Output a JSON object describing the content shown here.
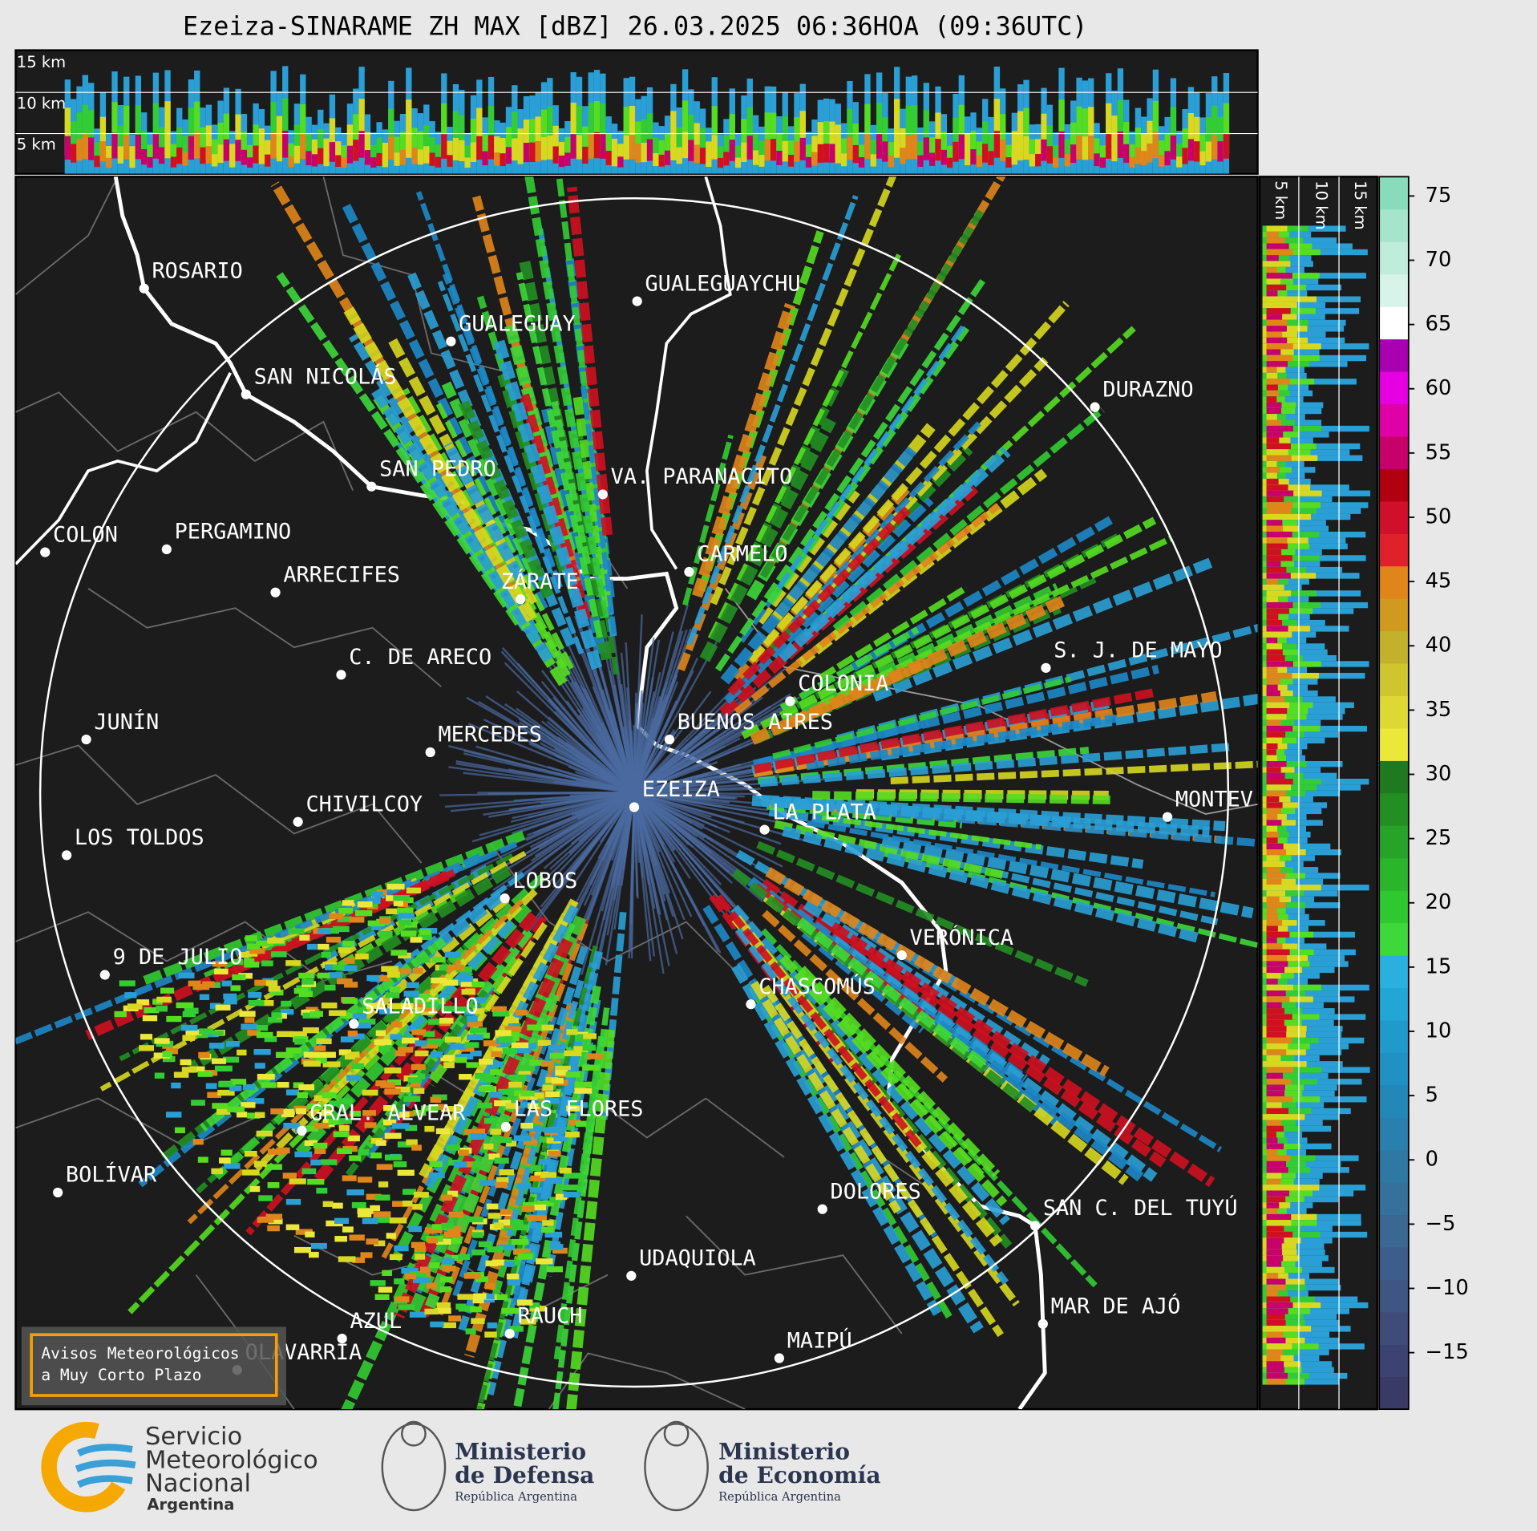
{
  "header": {
    "title": "Ezeiza-SINARAME ZH MAX [dBZ] 26.03.2025 06:36HOA (09:36UTC)"
  },
  "top_panel": {
    "labels": [
      "15 km",
      "10 km",
      "5 km"
    ]
  },
  "side_panel": {
    "labels": [
      "5 km",
      "10 km",
      "15 km"
    ]
  },
  "colorbar": {
    "lim": [
      -19.4,
      76.5
    ],
    "ticks": [
      75,
      70,
      65,
      60,
      55,
      50,
      45,
      40,
      35,
      30,
      25,
      20,
      15,
      10,
      5,
      0,
      {
        "value": -5,
        "label": "−5"
      },
      {
        "value": -10,
        "label": "−10"
      },
      {
        "value": -15,
        "label": "−15"
      }
    ],
    "colors": [
      "#3a3a66",
      "#3d4370",
      "#3f4c7a",
      "#3f5583",
      "#3d5e8b",
      "#3a6893",
      "#36719b",
      "#3078a4",
      "#2980ae",
      "#2388b8",
      "#1f91c2",
      "#1f9acb",
      "#22a6d6",
      "#2ab0de",
      "#3dd83a",
      "#30c830",
      "#2ab52a",
      "#27a327",
      "#238f23",
      "#1f7a1f",
      "#ece83a",
      "#ded835",
      "#cfc52f",
      "#c4b12b",
      "#d09a1e",
      "#e0851a",
      "#e0202a",
      "#d0102a",
      "#b00010",
      "#c8006a",
      "#e000a8",
      "#e400e0",
      "#a800b0",
      "#ffffff",
      "#d8f4ea",
      "#c0ecdc",
      "#a6e4cc",
      "#88dcbc"
    ]
  },
  "cities": [
    "ROSARIO",
    "GUALEGUAYCHU",
    "GUALEGUAY",
    "SAN NICOLÁS",
    "DURAZNO",
    "SAN PEDRO",
    "VA. PARANACITO",
    "COLON",
    "PERGAMINO",
    "CARMELO",
    "ARRECIFES",
    "ZÁRATE",
    "C. DE ARECO",
    "S. J. DE MAYO",
    "COLONIA",
    "JUNÍN",
    "BUENOS AIRES",
    "MERCEDES",
    "EZEIZA",
    "MONTEV",
    "CHIVILCOY",
    "LA PLATA",
    "LOS TOLDOS",
    "LOBOS",
    "VERÓNICA",
    "9 DE JULIO",
    "CHASCOMÚS",
    "SALADILLO",
    "GRAL. ALVEAR",
    "LAS FLORES",
    "BOLÍVAR",
    "DOLORES",
    "SAN C. DEL TUYÚ",
    "UDAQUIOLA",
    "MAR DE AJÓ",
    "RAUCH",
    "AZUL",
    "OLAVARRÍA",
    "MAIPÚ"
  ],
  "notice": [
    "Avisos Meteorológicos",
    "a Muy Corto Plazo"
  ],
  "logos": {
    "smn": [
      "Servicio",
      "Meteorológico",
      "Nacional",
      "Argentina"
    ],
    "defensa": [
      "Ministerio",
      "de Defensa",
      "República Argentina"
    ],
    "economia": [
      "Ministerio",
      "de Economía",
      "República Argentina"
    ]
  }
}
